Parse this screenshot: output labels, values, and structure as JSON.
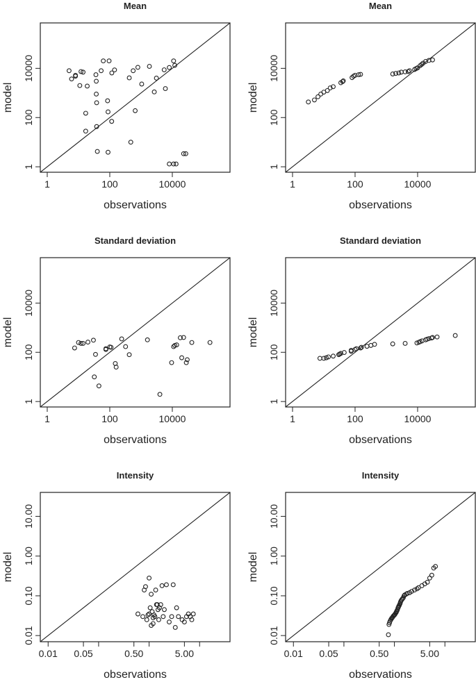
{
  "chart_data": [
    {
      "type": "scatter",
      "title": "Mean",
      "xlabel": "observations",
      "ylabel": "model",
      "scale": "log",
      "xlim": [
        0.6,
        700000
      ],
      "ylim": [
        0.6,
        700000
      ],
      "xticks": [
        {
          "v": 1,
          "label": "1"
        },
        {
          "v": 100,
          "label": "100"
        },
        {
          "v": 10000,
          "label": "10000"
        }
      ],
      "yticks": [
        {
          "v": 1,
          "label": "1"
        },
        {
          "v": 100,
          "label": "100"
        },
        {
          "v": 10000,
          "label": "10000"
        }
      ],
      "x": [
        5,
        6,
        8,
        8,
        12,
        11,
        14,
        17,
        17,
        19,
        36,
        37,
        37,
        38,
        38,
        40,
        53,
        62,
        88,
        85,
        88,
        95,
        115,
        116,
        142,
        420,
        470,
        560,
        650,
        790,
        1050,
        1850,
        2650,
        3100,
        5500,
        6000,
        8000,
        11000,
        12000,
        8000,
        11000,
        13200,
        23000,
        27000
      ],
      "y": [
        8000,
        3700,
        5200,
        4800,
        7400,
        2000,
        7000,
        150,
        28,
        1900,
        5500,
        3000,
        900,
        400,
        43,
        4.2,
        8000,
        20000,
        170,
        480,
        3.9,
        20000,
        70,
        6500,
        8600,
        4100,
        10,
        8000,
        190,
        11000,
        2300,
        12000,
        1100,
        4000,
        8700,
        1500,
        10800,
        20000,
        13200,
        1.3,
        1.3,
        1.3,
        3.4,
        3.4
      ]
    },
    {
      "type": "scatter",
      "title": "Mean",
      "xlabel": "observations",
      "ylabel": "model",
      "scale": "log",
      "xlim": [
        0.6,
        700000
      ],
      "ylim": [
        0.6,
        700000
      ],
      "xticks": [
        {
          "v": 1,
          "label": "1"
        },
        {
          "v": 100,
          "label": "100"
        },
        {
          "v": 10000,
          "label": "10000"
        }
      ],
      "yticks": [
        {
          "v": 1,
          "label": "1"
        },
        {
          "v": 100,
          "label": "100"
        },
        {
          "v": 10000,
          "label": "10000"
        }
      ],
      "x": [
        3.2,
        5,
        6.5,
        8,
        10,
        13,
        16,
        20,
        35,
        40,
        42,
        80,
        90,
        100,
        130,
        150,
        1600,
        2000,
        2500,
        3000,
        4000,
        5000,
        5500,
        8000,
        9000,
        10000,
        12000,
        13500,
        15000,
        18000,
        23000,
        30000
      ],
      "y": [
        430,
        520,
        700,
        900,
        1080,
        1250,
        1600,
        1800,
        2600,
        2900,
        3100,
        4200,
        4800,
        5200,
        5500,
        5700,
        5900,
        6200,
        6500,
        7000,
        7200,
        7400,
        8000,
        9000,
        9800,
        10500,
        12800,
        14500,
        16200,
        19000,
        21000,
        22000
      ]
    },
    {
      "type": "scatter",
      "title": "Standard deviation",
      "xlabel": "observations",
      "ylabel": "model",
      "scale": "log",
      "xlim": [
        0.6,
        700000
      ],
      "ylim": [
        0.6,
        700000
      ],
      "xticks": [
        {
          "v": 1,
          "label": "1"
        },
        {
          "v": 100,
          "label": "100"
        },
        {
          "v": 10000,
          "label": "10000"
        }
      ],
      "yticks": [
        {
          "v": 1,
          "label": "1"
        },
        {
          "v": 100,
          "label": "100"
        },
        {
          "v": 10000,
          "label": "10000"
        }
      ],
      "x": [
        7.5,
        10,
        12,
        14,
        20,
        30,
        32,
        35,
        45,
        75,
        75,
        100,
        110,
        150,
        160,
        240,
        320,
        420,
        1600,
        4000,
        9500,
        11000,
        12000,
        13800,
        18000,
        20000,
        23000,
        28000,
        30000,
        42000,
        160000
      ],
      "y": [
        150,
        250,
        230,
        230,
        260,
        310,
        10,
        82,
        4.3,
        130,
        140,
        165,
        160,
        35,
        25,
        350,
        170,
        80,
        320,
        1.95,
        38,
        170,
        190,
        200,
        390,
        60,
        400,
        38,
        50,
        250,
        250
      ]
    },
    {
      "type": "scatter",
      "title": "Standard deviation",
      "xlabel": "observations",
      "ylabel": "model",
      "scale": "log",
      "xlim": [
        0.6,
        700000
      ],
      "ylim": [
        0.6,
        700000
      ],
      "xticks": [
        {
          "v": 1,
          "label": "1"
        },
        {
          "v": 100,
          "label": "100"
        },
        {
          "v": 10000,
          "label": "10000"
        }
      ],
      "yticks": [
        {
          "v": 1,
          "label": "1"
        },
        {
          "v": 100,
          "label": "100"
        },
        {
          "v": 10000,
          "label": "10000"
        }
      ],
      "x": [
        7.5,
        10,
        12,
        14,
        20,
        30,
        32,
        35,
        45,
        75,
        75,
        100,
        110,
        150,
        160,
        240,
        320,
        420,
        1600,
        4000,
        9500,
        11000,
        12000,
        13800,
        18000,
        20000,
        23000,
        28000,
        30000,
        42000,
        160000
      ],
      "y": [
        57,
        57,
        60,
        65,
        70,
        80,
        85,
        90,
        98,
        110,
        120,
        130,
        140,
        150,
        160,
        175,
        190,
        210,
        220,
        230,
        240,
        255,
        270,
        290,
        320,
        340,
        360,
        380,
        400,
        420,
        480
      ]
    },
    {
      "type": "scatter",
      "title": "Intensity",
      "xlabel": "observations",
      "ylabel": "model",
      "scale": "log",
      "xlim": [
        0.007,
        40
      ],
      "ylim": [
        0.007,
        40
      ],
      "xticks": [
        {
          "v": 0.01,
          "label": "0.01"
        },
        {
          "v": 0.05,
          "label": "0.05"
        },
        {
          "v": 0.1,
          "label": ""
        },
        {
          "v": 0.5,
          "label": "0.50"
        },
        {
          "v": 1,
          "label": ""
        },
        {
          "v": 5,
          "label": "5.00"
        },
        {
          "v": 10,
          "label": ""
        }
      ],
      "yticks": [
        {
          "v": 0.01,
          "label": "0.01"
        },
        {
          "v": 0.1,
          "label": "0.10"
        },
        {
          "v": 1,
          "label": "1.00"
        },
        {
          "v": 10,
          "label": "10.00"
        }
      ],
      "x": [
        0.6,
        0.75,
        0.8,
        0.85,
        0.9,
        0.95,
        1.0,
        1.0,
        1.05,
        1.1,
        1.1,
        1.15,
        1.2,
        1.2,
        1.25,
        1.3,
        1.35,
        1.4,
        1.45,
        1.5,
        1.55,
        1.6,
        1.7,
        1.8,
        1.9,
        2.0,
        2.2,
        2.5,
        2.8,
        3.0,
        3.3,
        3.5,
        3.8,
        4.5,
        5.0,
        5.5,
        6.0,
        6.5,
        7.0,
        7.5
      ],
      "y": [
        0.035,
        0.03,
        0.14,
        0.17,
        0.025,
        0.033,
        0.28,
        0.035,
        0.05,
        0.018,
        0.11,
        0.04,
        0.02,
        0.028,
        0.033,
        0.03,
        0.14,
        0.06,
        0.06,
        0.045,
        0.025,
        0.05,
        0.06,
        0.18,
        0.03,
        0.045,
        0.19,
        0.022,
        0.03,
        0.19,
        0.016,
        0.05,
        0.03,
        0.025,
        0.022,
        0.03,
        0.035,
        0.03,
        0.025,
        0.035
      ]
    },
    {
      "type": "scatter",
      "title": "Intensity",
      "xlabel": "observations",
      "ylabel": "model",
      "scale": "log",
      "xlim": [
        0.007,
        40
      ],
      "ylim": [
        0.007,
        40
      ],
      "xticks": [
        {
          "v": 0.01,
          "label": "0.01"
        },
        {
          "v": 0.05,
          "label": "0.05"
        },
        {
          "v": 0.1,
          "label": ""
        },
        {
          "v": 0.5,
          "label": "0.50"
        },
        {
          "v": 1,
          "label": ""
        },
        {
          "v": 5,
          "label": "5.00"
        },
        {
          "v": 10,
          "label": ""
        }
      ],
      "yticks": [
        {
          "v": 0.01,
          "label": "0.01"
        },
        {
          "v": 0.1,
          "label": "0.10"
        },
        {
          "v": 1,
          "label": "1.00"
        },
        {
          "v": 10,
          "label": "10.00"
        }
      ],
      "x": [
        0.76,
        0.78,
        0.8,
        0.82,
        0.85,
        0.88,
        0.9,
        0.92,
        0.95,
        0.98,
        1.0,
        1.02,
        1.05,
        1.08,
        1.1,
        1.12,
        1.15,
        1.18,
        1.2,
        1.22,
        1.25,
        1.28,
        1.3,
        1.32,
        1.35,
        1.4,
        1.45,
        1.5,
        1.55,
        1.6,
        1.7,
        1.8,
        2.0,
        2.2,
        2.5,
        2.8,
        3.0,
        3.5,
        4.0,
        4.5,
        5.0,
        5.5,
        6.0,
        6.5
      ],
      "y": [
        0.0105,
        0.019,
        0.021,
        0.023,
        0.025,
        0.027,
        0.028,
        0.029,
        0.031,
        0.032,
        0.033,
        0.034,
        0.036,
        0.038,
        0.04,
        0.042,
        0.045,
        0.05,
        0.052,
        0.055,
        0.058,
        0.062,
        0.065,
        0.07,
        0.075,
        0.08,
        0.085,
        0.09,
        0.1,
        0.105,
        0.11,
        0.115,
        0.12,
        0.13,
        0.14,
        0.15,
        0.16,
        0.18,
        0.2,
        0.22,
        0.28,
        0.33,
        0.5,
        0.55
      ]
    }
  ]
}
